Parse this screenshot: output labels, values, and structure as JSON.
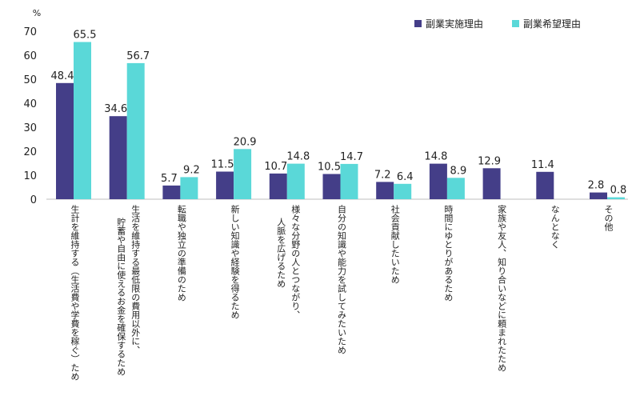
{
  "chart_data": {
    "type": "bar",
    "ylabel": "%",
    "ylim": [
      0,
      70
    ],
    "yticks": [
      0,
      10,
      20,
      30,
      40,
      50,
      60,
      70
    ],
    "legend_position": "top-right",
    "categories": [
      [
        "生計を維持する（生活費や学費を稼ぐ）ため"
      ],
      [
        "生活を維持する最低限の費用以外に、",
        "貯蓄や自由に使えるお金を確保するため"
      ],
      [
        "転職や独立の準備のため"
      ],
      [
        "新しい知識や経験を得るため"
      ],
      [
        "様々な分野の人とつながり、",
        "人脈を広げるため"
      ],
      [
        "自分の知識や能力を試してみたいため"
      ],
      [
        "社会貢献したいため"
      ],
      [
        "時間にゆとりがあるため"
      ],
      [
        "家族や友人、知り合いなどに頼まれたため"
      ],
      [
        "なんとなく"
      ],
      [
        "その他"
      ]
    ],
    "series": [
      {
        "name": "副業実施理由",
        "color": "#443e88",
        "values": [
          48.4,
          34.6,
          5.7,
          11.5,
          10.7,
          10.5,
          7.2,
          14.8,
          12.9,
          11.4,
          2.8
        ]
      },
      {
        "name": "副業希望理由",
        "color": "#5ad8d8",
        "values": [
          65.5,
          56.7,
          9.2,
          20.9,
          14.8,
          14.7,
          6.4,
          8.9,
          null,
          null,
          0.8
        ]
      }
    ]
  }
}
